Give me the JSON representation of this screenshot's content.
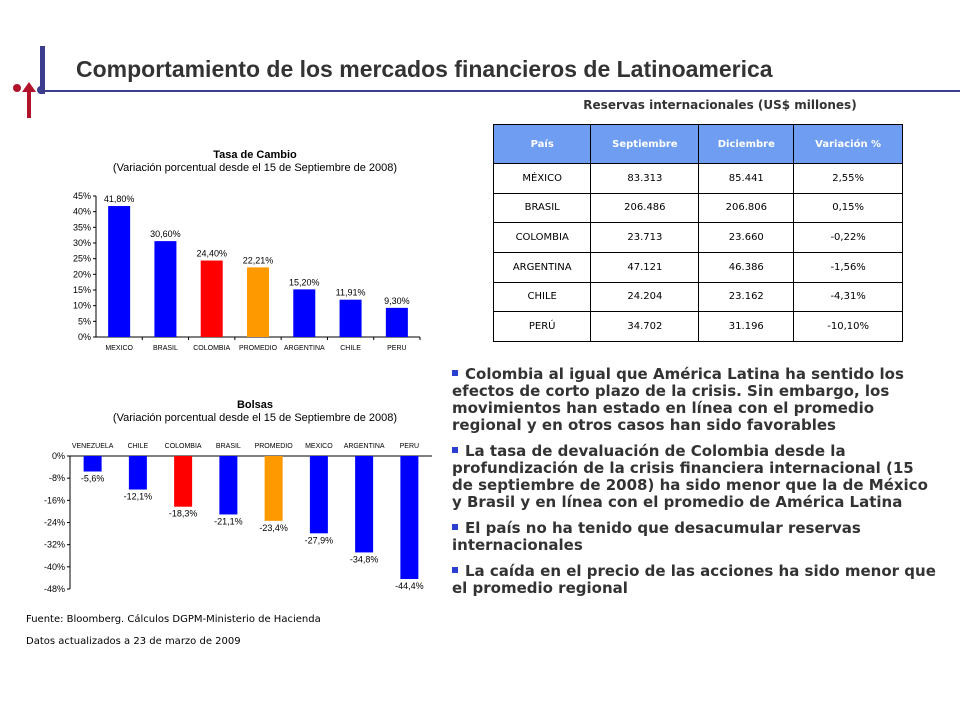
{
  "colors": {
    "blue": "#0000ff",
    "red": "#ff0000",
    "orange": "#ff9900",
    "accent": "#3d3d8f",
    "table_header": "#6f9df2"
  },
  "page": {
    "title": "Comportamiento de los mercados financieros de Latinoamerica"
  },
  "table": {
    "title": "Reservas internacionales (US$ millones)",
    "headers": [
      "País",
      "Septiembre",
      "Diciembre",
      "Variación %"
    ],
    "rows": [
      [
        "MÉXICO",
        "83.313",
        "85.441",
        "2,55%"
      ],
      [
        "BRASIL",
        "206.486",
        "206.806",
        "0,15%"
      ],
      [
        "COLOMBIA",
        "23.713",
        "23.660",
        "-0,22%"
      ],
      [
        "ARGENTINA",
        "47.121",
        "46.386",
        "-1,56%"
      ],
      [
        "CHILE",
        "24.204",
        "23.162",
        "-4,31%"
      ],
      [
        "PERÚ",
        "34.702",
        "31.196",
        "-10,10%"
      ]
    ]
  },
  "chart_data": [
    {
      "type": "bar",
      "title": "Tasa de Cambio",
      "subtitle": "(Variación porcentual desde el 15 de Septiembre de 2008)",
      "categories": [
        "MEXICO",
        "BRASIL",
        "COLOMBIA",
        "PROMEDIO",
        "ARGENTINA",
        "CHILE",
        "PERU"
      ],
      "values": [
        41.8,
        30.6,
        24.4,
        22.21,
        15.2,
        11.91,
        9.3
      ],
      "value_labels": [
        "41,80%",
        "30,60%",
        "24,40%",
        "22,21%",
        "15,20%",
        "11,91%",
        "9,30%"
      ],
      "bar_colors": [
        "#0000ff",
        "#0000ff",
        "#ff0000",
        "#ff9900",
        "#0000ff",
        "#0000ff",
        "#0000ff"
      ],
      "ylim": [
        0,
        45
      ],
      "yticks": [
        "0%",
        "5%",
        "10%",
        "15%",
        "20%",
        "25%",
        "30%",
        "35%",
        "40%",
        "45%"
      ],
      "grid": false
    },
    {
      "type": "bar",
      "title": "Bolsas",
      "subtitle": "(Variación porcentual desde el 15 de Septiembre de 2008)",
      "categories": [
        "VENEZUELA",
        "CHILE",
        "COLOMBIA",
        "BRASIL",
        "PROMEDIO",
        "MEXICO",
        "ARGENTINA",
        "PERU"
      ],
      "values": [
        -5.6,
        -12.1,
        -18.3,
        -21.1,
        -23.4,
        -27.9,
        -34.8,
        -44.4
      ],
      "value_labels": [
        "-5,6%",
        "-12,1%",
        "-18,3%",
        "-21,1%",
        "-23,4%",
        "-27,9%",
        "-34,8%",
        "-44,4%"
      ],
      "bar_colors": [
        "#0000ff",
        "#0000ff",
        "#ff0000",
        "#0000ff",
        "#ff9900",
        "#0000ff",
        "#0000ff",
        "#0000ff"
      ],
      "ylim": [
        -48,
        0
      ],
      "yticks": [
        "0%",
        "-8%",
        "-16%",
        "-24%",
        "-32%",
        "-40%",
        "-48%"
      ],
      "grid": false
    }
  ],
  "bullets": [
    "Colombia al igual que América Latina ha sentido los efectos de corto plazo de la crisis. Sin embargo, los movimientos han estado en línea con el promedio regional y en otros casos han sido favorables",
    "La tasa de devaluación de Colombia desde la profundización de la crisis financiera internacional (15 de septiembre de 2008) ha sido menor que la de México y Brasil y en línea con el promedio de América Latina",
    "El país no ha tenido que desacumular reservas internacionales",
    "La caída en el precio de las acciones ha sido menor que el promedio regional"
  ],
  "footnotes": {
    "source": "Fuente: Bloomberg. Cálculos DGPM-Ministerio de Hacienda",
    "updated": "Datos actualizados a 23 de marzo de 2009"
  }
}
